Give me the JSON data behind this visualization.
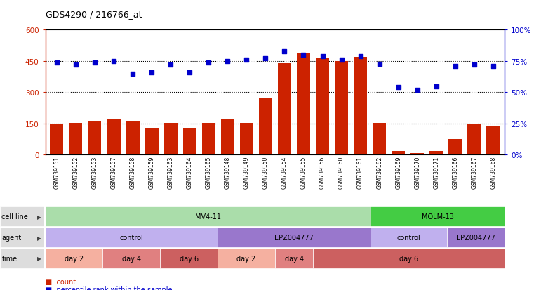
{
  "title": "GDS4290 / 216766_at",
  "samples": [
    "GSM739151",
    "GSM739152",
    "GSM739153",
    "GSM739157",
    "GSM739158",
    "GSM739159",
    "GSM739163",
    "GSM739164",
    "GSM739165",
    "GSM739148",
    "GSM739149",
    "GSM739150",
    "GSM739154",
    "GSM739155",
    "GSM739156",
    "GSM739160",
    "GSM739161",
    "GSM739162",
    "GSM739169",
    "GSM739170",
    "GSM739171",
    "GSM739166",
    "GSM739167",
    "GSM739168"
  ],
  "counts": [
    150,
    155,
    160,
    170,
    165,
    130,
    155,
    130,
    155,
    170,
    155,
    270,
    440,
    490,
    465,
    450,
    470,
    155,
    18,
    10,
    20,
    75,
    145,
    135
  ],
  "percentile": [
    74,
    72,
    74,
    75,
    65,
    66,
    72,
    66,
    74,
    75,
    76,
    77,
    83,
    80,
    79,
    76,
    79,
    73,
    54,
    52,
    55,
    71,
    72,
    71
  ],
  "bar_color": "#cc2200",
  "dot_color": "#0000cc",
  "left_ylim": [
    0,
    600
  ],
  "right_ylim": [
    0,
    100
  ],
  "left_yticks": [
    0,
    150,
    300,
    450,
    600
  ],
  "left_yticklabels": [
    "0",
    "150",
    "300",
    "450",
    "600"
  ],
  "right_yticks": [
    0,
    25,
    50,
    75,
    100
  ],
  "right_yticklabels": [
    "0%",
    "25%",
    "50%",
    "75%",
    "100%"
  ],
  "hlines": [
    150,
    300,
    450
  ],
  "cell_line_groups": [
    {
      "label": "MV4-11",
      "start": 0,
      "end": 17,
      "color": "#aaddaa"
    },
    {
      "label": "MOLM-13",
      "start": 17,
      "end": 24,
      "color": "#44cc44"
    }
  ],
  "agent_groups": [
    {
      "label": "control",
      "start": 0,
      "end": 9,
      "color": "#c0b0ee"
    },
    {
      "label": "EPZ004777",
      "start": 9,
      "end": 17,
      "color": "#9977cc"
    },
    {
      "label": "control",
      "start": 17,
      "end": 21,
      "color": "#c0b0ee"
    },
    {
      "label": "EPZ004777",
      "start": 21,
      "end": 24,
      "color": "#9977cc"
    }
  ],
  "time_groups": [
    {
      "label": "day 2",
      "start": 0,
      "end": 3,
      "color": "#f5b0a0"
    },
    {
      "label": "day 4",
      "start": 3,
      "end": 6,
      "color": "#e08080"
    },
    {
      "label": "day 6",
      "start": 6,
      "end": 9,
      "color": "#cc6060"
    },
    {
      "label": "day 2",
      "start": 9,
      "end": 12,
      "color": "#f5b0a0"
    },
    {
      "label": "day 4",
      "start": 12,
      "end": 14,
      "color": "#e08080"
    },
    {
      "label": "day 6",
      "start": 14,
      "end": 24,
      "color": "#cc6060"
    }
  ],
  "background_color": "#ffffff",
  "plot_bg_color": "#ffffff"
}
